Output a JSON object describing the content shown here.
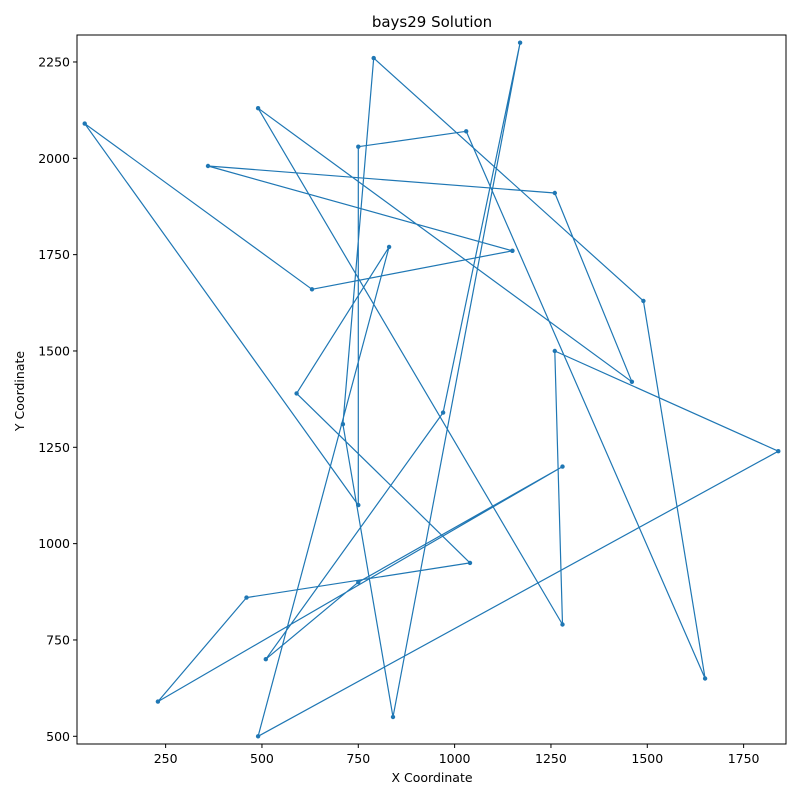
{
  "chart_data": {
    "type": "line",
    "title": "bays29 Solution",
    "xlabel": "X Coordinate",
    "ylabel": "Y Coordinate",
    "xlim": [
      20,
      1860
    ],
    "ylim": [
      480,
      2320
    ],
    "xticks": [
      250,
      500,
      750,
      1000,
      1250,
      1500,
      1750
    ],
    "yticks": [
      500,
      750,
      1000,
      1250,
      1500,
      1750,
      2000,
      2250
    ],
    "grid": false,
    "color": "#1f77b4",
    "series": [
      {
        "x": [
          1150,
          630,
          40,
          750,
          750,
          1030,
          1650,
          1490,
          790,
          710,
          840,
          1170,
          970,
          510,
          750,
          1280,
          230,
          460,
          1040,
          590,
          830,
          490,
          1840,
          1260,
          1280,
          490,
          1460,
          1260,
          360,
          1150
        ],
        "y": [
          1760,
          1660,
          2090,
          1100,
          2030,
          2070,
          650,
          1630,
          2260,
          1310,
          550,
          2300,
          1340,
          700,
          900,
          1200,
          590,
          860,
          950,
          1390,
          1770,
          500,
          1240,
          1500,
          790,
          2130,
          1420,
          1910,
          1980,
          1760
        ]
      }
    ]
  }
}
